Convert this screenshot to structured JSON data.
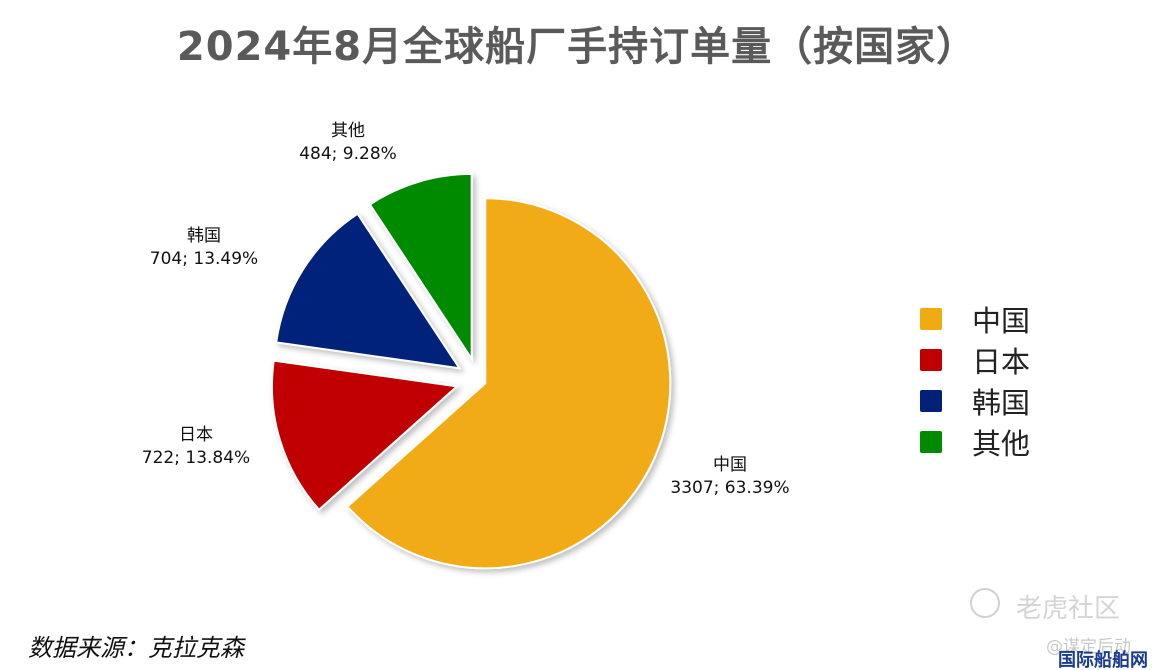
{
  "title": "2024年8月全球船厂手持订单量（按国家）",
  "chart_data": {
    "type": "pie",
    "title": "2024年8月全球船厂手持订单量（按国家）",
    "slices": [
      {
        "name": "中国",
        "value": 3307,
        "percent": "63.39%",
        "label": "3307; 63.39%",
        "color": "#f0ab12"
      },
      {
        "name": "日本",
        "value": 722,
        "percent": "13.84%",
        "label": "722; 13.84%",
        "color": "#c00000"
      },
      {
        "name": "韩国",
        "value": 704,
        "percent": "13.49%",
        "label": "704; 13.49%",
        "color": "#00207a"
      },
      {
        "name": "其他",
        "value": 484,
        "percent": "9.28%",
        "label": "484; 9.28%",
        "color": "#008a00"
      }
    ],
    "legend": {
      "placement": "right",
      "items": [
        "中国",
        "日本",
        "韩国",
        "其他"
      ]
    }
  },
  "source": "数据来源：克拉克森",
  "watermarks": {
    "community": "老虎社区",
    "handle": "@谋定后动",
    "site": "国际船舶网"
  }
}
